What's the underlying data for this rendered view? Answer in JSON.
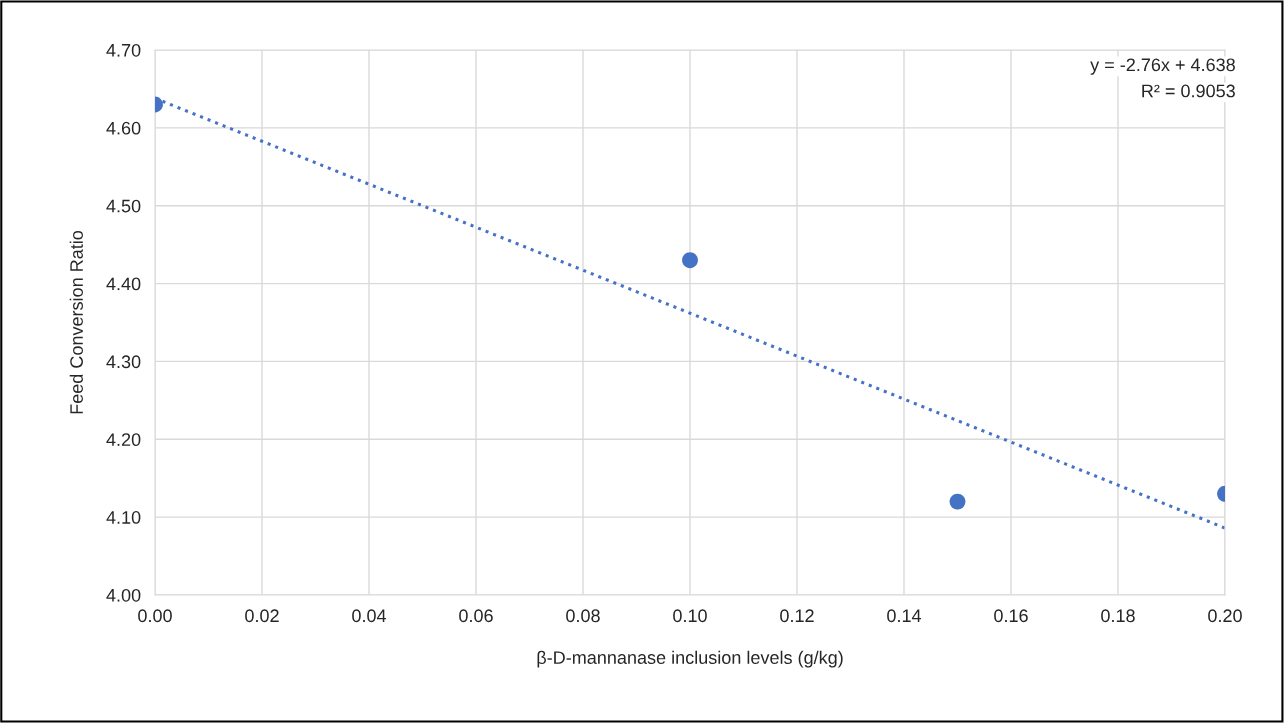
{
  "chart_data": {
    "type": "scatter",
    "xlabel": "β-D-mannanase inclusion levels (g/kg)",
    "ylabel": "Feed Conversion Ratio",
    "x": [
      0.0,
      0.1,
      0.15,
      0.2
    ],
    "series": [
      {
        "color": "#4472c4",
        "values": [
          4.63,
          4.43,
          4.12,
          4.13
        ],
        "marker": "circle"
      },
      {
        "type": "line",
        "color": "#4472c4",
        "x": [
          0.0,
          0.2
        ],
        "values": [
          4.638,
          4.086
        ],
        "line_style": "dotted",
        "marker": "none"
      }
    ],
    "xlim": [
      0.0,
      0.2
    ],
    "xticks": [
      {
        "value": 0.0,
        "label": "0.00"
      },
      {
        "value": 0.02,
        "label": "0.02"
      },
      {
        "value": 0.04,
        "label": "0.04"
      },
      {
        "value": 0.06,
        "label": "0.06"
      },
      {
        "value": 0.08,
        "label": "0.08"
      },
      {
        "value": 0.1,
        "label": "0.10"
      },
      {
        "value": 0.12,
        "label": "0.12"
      },
      {
        "value": 0.14,
        "label": "0.14"
      },
      {
        "value": 0.16,
        "label": "0.16"
      },
      {
        "value": 0.18,
        "label": "0.18"
      },
      {
        "value": 0.2,
        "label": "0.20"
      }
    ],
    "ylim": [
      4.0,
      4.7
    ],
    "yticks": [
      {
        "value": 4.0,
        "label": "4.00"
      },
      {
        "value": 4.1,
        "label": "4.10"
      },
      {
        "value": 4.2,
        "label": "4.20"
      },
      {
        "value": 4.3,
        "label": "4.30"
      },
      {
        "value": 4.4,
        "label": "4.40"
      },
      {
        "value": 4.5,
        "label": "4.50"
      },
      {
        "value": 4.6,
        "label": "4.60"
      },
      {
        "value": 4.7,
        "label": "4.70"
      }
    ],
    "annotations": [
      "y = -2.76x + 4.638",
      "R² = 0.9053"
    ],
    "grid": true,
    "legend": false
  }
}
